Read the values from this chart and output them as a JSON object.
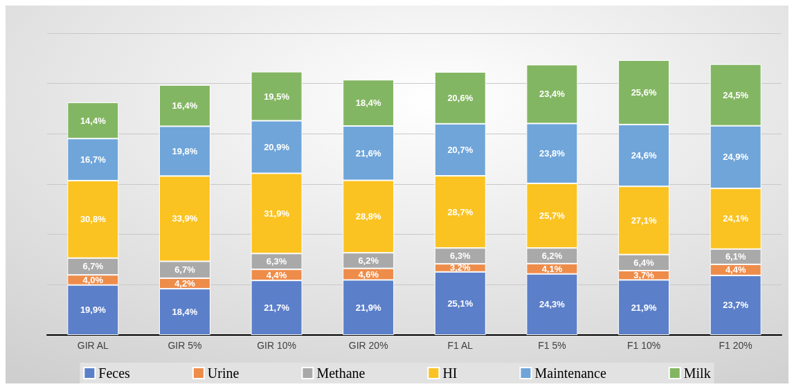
{
  "chart_data": {
    "type": "bar",
    "stacked": true,
    "categories": [
      "GIR AL",
      "GIR 5%",
      "GIR 10%",
      "GIR 20%",
      "F1 AL",
      "F1 5%",
      "F1 10%",
      "F1 20%"
    ],
    "series": [
      {
        "name": "Feces",
        "color": "#5b7fc9",
        "values": [
          19.9,
          18.4,
          21.7,
          21.9,
          25.1,
          24.3,
          21.9,
          23.7
        ],
        "value_labels": [
          "19,9%",
          "18,4%",
          "21,7%",
          "21,9%",
          "25,1%",
          "24,3%",
          "21,9%",
          "23,7%"
        ]
      },
      {
        "name": "Urine",
        "color": "#ee8c4a",
        "values": [
          4.0,
          4.2,
          4.4,
          4.6,
          3.2,
          4.1,
          3.7,
          4.4
        ],
        "value_labels": [
          "4,0%",
          "4,2%",
          "4,4%",
          "4,6%",
          "3,2%",
          "4,1%",
          "3,7%",
          "4,4%"
        ]
      },
      {
        "name": "Methane",
        "color": "#a9a9a9",
        "values": [
          6.7,
          6.7,
          6.3,
          6.2,
          6.3,
          6.2,
          6.4,
          6.1
        ],
        "value_labels": [
          "6,7%",
          "6,7%",
          "6,3%",
          "6,2%",
          "6,3%",
          "6,2%",
          "6,4%",
          "6,1%"
        ]
      },
      {
        "name": "HI",
        "color": "#fbc321",
        "values": [
          30.8,
          33.9,
          31.9,
          28.8,
          28.7,
          25.7,
          27.1,
          24.1
        ],
        "value_labels": [
          "30,8%",
          "33,9%",
          "31,9%",
          "28,8%",
          "28,7%",
          "25,7%",
          "27,1%",
          "24,1%"
        ]
      },
      {
        "name": "Maintenance",
        "color": "#6fa5d9",
        "values": [
          16.7,
          19.8,
          20.9,
          21.6,
          20.7,
          23.8,
          24.6,
          24.9
        ],
        "value_labels": [
          "16,7%",
          "19,8%",
          "20,9%",
          "21,6%",
          "20,7%",
          "23,8%",
          "24,6%",
          "24,9%"
        ]
      },
      {
        "name": "Milk",
        "color": "#83b662",
        "values": [
          14.4,
          16.4,
          19.5,
          18.4,
          20.6,
          23.4,
          25.6,
          24.5
        ],
        "value_labels": [
          "14,4%",
          "16,4%",
          "19,5%",
          "18,4%",
          "20,6%",
          "23,4%",
          "25,6%",
          "24,5%"
        ]
      }
    ],
    "ylim": [
      0,
      120
    ],
    "yticks": [
      {
        "value": 0,
        "label": null
      },
      {
        "value": 20,
        "label": null
      },
      {
        "value": 40,
        "label": null
      },
      {
        "value": 60,
        "label": null
      },
      {
        "value": 80,
        "label": null
      },
      {
        "value": 100,
        "label": null
      },
      {
        "value": 120,
        "label": null
      }
    ],
    "tick_labels": "x",
    "grid": "y",
    "legend": "bottom"
  }
}
